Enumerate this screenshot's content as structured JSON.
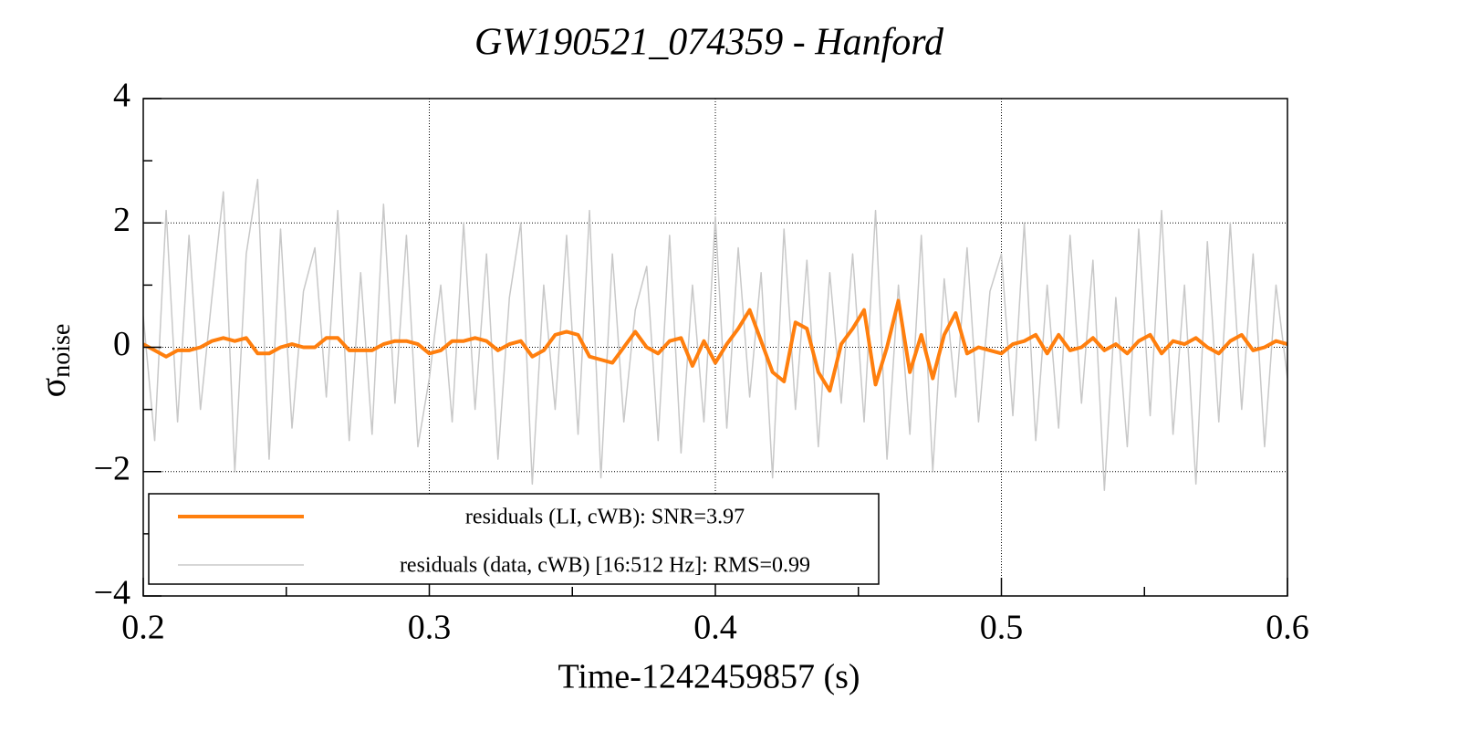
{
  "chart_data": {
    "type": "line",
    "title": "GW190521_074359 - Hanford",
    "xlabel": "Time-1242459857 (s)",
    "ylabel": {
      "symbol": "σ",
      "subscript": "noise"
    },
    "xlim": [
      0.2,
      0.6
    ],
    "ylim": [
      -4,
      4
    ],
    "xticks": [
      0.2,
      0.3,
      0.4,
      0.5,
      0.6
    ],
    "xminorticks": [
      0.25,
      0.35,
      0.45,
      0.55
    ],
    "yticks": [
      {
        "value": -4,
        "label": "−4"
      },
      {
        "value": -2,
        "label": "−2"
      },
      0,
      2,
      4
    ],
    "yminorticks": [
      -3,
      -1,
      1,
      3
    ],
    "grid": true,
    "legend": "lower left",
    "x": [
      0.2,
      0.204,
      0.208,
      0.212,
      0.216,
      0.22,
      0.224,
      0.228,
      0.232,
      0.236,
      0.24,
      0.244,
      0.248,
      0.252,
      0.256,
      0.26,
      0.264,
      0.268,
      0.272,
      0.276,
      0.28,
      0.284,
      0.288,
      0.292,
      0.296,
      0.3,
      0.304,
      0.308,
      0.312,
      0.316,
      0.32,
      0.324,
      0.328,
      0.332,
      0.336,
      0.34,
      0.344,
      0.348,
      0.352,
      0.356,
      0.36,
      0.364,
      0.368,
      0.372,
      0.376,
      0.38,
      0.384,
      0.388,
      0.392,
      0.396,
      0.4,
      0.404,
      0.408,
      0.412,
      0.416,
      0.42,
      0.424,
      0.428,
      0.432,
      0.436,
      0.44,
      0.444,
      0.448,
      0.452,
      0.456,
      0.46,
      0.464,
      0.468,
      0.472,
      0.476,
      0.48,
      0.484,
      0.488,
      0.492,
      0.496,
      0.5,
      0.504,
      0.508,
      0.512,
      0.516,
      0.52,
      0.524,
      0.528,
      0.532,
      0.536,
      0.54,
      0.544,
      0.548,
      0.552,
      0.556,
      0.56,
      0.564,
      0.568,
      0.572,
      0.576,
      0.58,
      0.584,
      0.588,
      0.592,
      0.596,
      0.6
    ],
    "series": [
      {
        "name": "residuals (data, cWB) [16:512 Hz]: RMS=0.99",
        "color": "#c8c8c8",
        "width": 1.5,
        "values": [
          0.5,
          -1.5,
          2.2,
          -1.2,
          1.8,
          -1.0,
          0.8,
          2.5,
          -2.0,
          1.5,
          2.7,
          -1.8,
          1.9,
          -1.3,
          0.9,
          1.6,
          -0.8,
          2.2,
          -1.5,
          1.2,
          -1.4,
          2.3,
          -0.9,
          1.8,
          -1.6,
          -0.5,
          1.0,
          -1.2,
          2.0,
          -1.0,
          1.5,
          -1.8,
          0.8,
          2.0,
          -2.2,
          1.0,
          -1.0,
          1.8,
          -1.4,
          2.2,
          -2.1,
          1.5,
          -1.2,
          0.6,
          1.3,
          -1.5,
          1.8,
          -1.7,
          1.0,
          -1.2,
          2.1,
          -1.3,
          1.6,
          -0.8,
          1.2,
          -2.1,
          1.9,
          -1.0,
          1.4,
          -1.6,
          1.2,
          -0.9,
          1.5,
          -1.2,
          2.2,
          -1.8,
          1.0,
          -1.4,
          1.8,
          -2.0,
          1.1,
          -0.8,
          1.6,
          -1.2,
          0.9,
          1.5,
          -1.1,
          2.0,
          -1.5,
          1.0,
          -1.3,
          1.8,
          -0.9,
          1.4,
          -2.3,
          0.8,
          -1.6,
          1.9,
          -1.1,
          2.2,
          -1.4,
          1.0,
          -2.2,
          1.7,
          -1.2,
          2.0,
          -1.0,
          1.5,
          -1.6,
          1.0,
          -0.5
        ]
      },
      {
        "name": "residuals (LI, cWB): SNR=3.97",
        "color": "#ff7f0e",
        "width": 4,
        "values": [
          0.05,
          -0.05,
          -0.15,
          -0.05,
          -0.05,
          0.0,
          0.1,
          0.15,
          0.1,
          0.15,
          -0.1,
          -0.1,
          0.0,
          0.05,
          0.0,
          0.0,
          0.15,
          0.15,
          -0.05,
          -0.05,
          -0.05,
          0.05,
          0.1,
          0.1,
          0.05,
          -0.1,
          -0.05,
          0.1,
          0.1,
          0.15,
          0.1,
          -0.05,
          0.05,
          0.1,
          -0.15,
          -0.05,
          0.2,
          0.25,
          0.2,
          -0.15,
          -0.2,
          -0.25,
          0.0,
          0.25,
          0.0,
          -0.1,
          0.1,
          0.15,
          -0.3,
          0.1,
          -0.25,
          0.05,
          0.3,
          0.6,
          0.1,
          -0.4,
          -0.55,
          0.4,
          0.3,
          -0.4,
          -0.7,
          0.05,
          0.3,
          0.6,
          -0.6,
          0.0,
          0.75,
          -0.4,
          0.2,
          -0.5,
          0.2,
          0.55,
          -0.1,
          0.0,
          -0.05,
          -0.1,
          0.05,
          0.1,
          0.2,
          -0.1,
          0.2,
          -0.05,
          0.0,
          0.15,
          -0.05,
          0.05,
          -0.1,
          0.1,
          0.2,
          -0.1,
          0.1,
          0.05,
          0.15,
          0.0,
          -0.1,
          0.1,
          0.2,
          -0.05,
          0.0,
          0.1,
          0.05
        ]
      }
    ],
    "legend_order": [
      1,
      0
    ]
  }
}
